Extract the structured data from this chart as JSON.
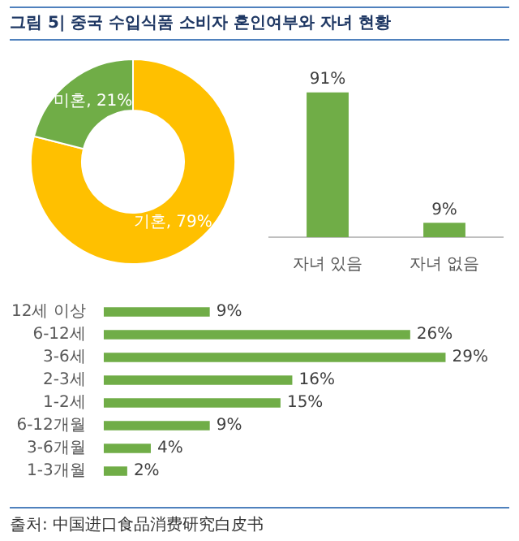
{
  "chart_data": [
    {
      "type": "donut",
      "title": "그림 5| 중국 수입식품 소비자 혼인여부와 자녀 현황",
      "categories": [
        "기혼",
        "미혼"
      ],
      "values": [
        79,
        21
      ],
      "colors": [
        "#ffc000",
        "#70ad47"
      ],
      "value_labels": [
        "79%",
        "21%"
      ],
      "legend": false
    },
    {
      "type": "bar",
      "categories": [
        "자녀 있음",
        "자녀 없음"
      ],
      "values": [
        91,
        9
      ],
      "color": "#70ad47",
      "value_labels": [
        "91%",
        "9%"
      ],
      "grid": false,
      "legend": false,
      "tick_labels": "x"
    },
    {
      "type": "bar",
      "orientation": "horizontal",
      "categories": [
        "12세 이상",
        "6-12세",
        "3-6세",
        "2-3세",
        "1-2세",
        "6-12개월",
        "3-6개월",
        "1-3개월"
      ],
      "values": [
        9,
        26,
        29,
        16,
        15,
        9,
        4,
        2
      ],
      "color": "#70ad47",
      "value_labels": [
        "9%",
        "26%",
        "29%",
        "16%",
        "15%",
        "9%",
        "4%",
        "2%"
      ],
      "grid": false,
      "legend": false,
      "tick_labels": "y",
      "annotations": [
        "출처: 中国进口食品消费研究白皮书"
      ]
    }
  ]
}
